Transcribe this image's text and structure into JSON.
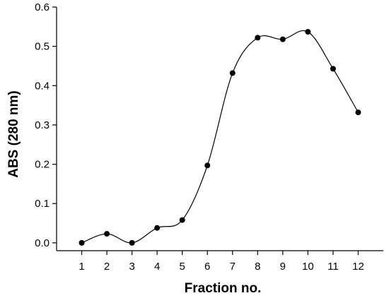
{
  "chart_data": {
    "type": "line",
    "title": "",
    "xlabel": "Fraction no.",
    "ylabel": "ABS (280 nm)",
    "x": [
      1,
      2,
      3,
      4,
      5,
      6,
      7,
      8,
      9,
      10,
      11,
      12
    ],
    "series": [
      {
        "values": [
          0.0,
          0.023,
          0.0,
          0.038,
          0.058,
          0.197,
          0.432,
          0.522,
          0.518,
          0.537,
          0.443,
          0.332
        ]
      }
    ],
    "xlim": [
      0,
      13
    ],
    "ylim": [
      -0.02,
      0.6
    ],
    "y_ticks": [
      "0.0",
      "0.1",
      "0.2",
      "0.3",
      "0.4",
      "0.5",
      "0.6"
    ],
    "x_ticks": [
      "1",
      "2",
      "3",
      "4",
      "5",
      "6",
      "7",
      "8",
      "9",
      "10",
      "11",
      "12"
    ],
    "grid": false,
    "legend": "none",
    "line_color": "#000000",
    "marker_color": "#000000",
    "smooth": true
  }
}
